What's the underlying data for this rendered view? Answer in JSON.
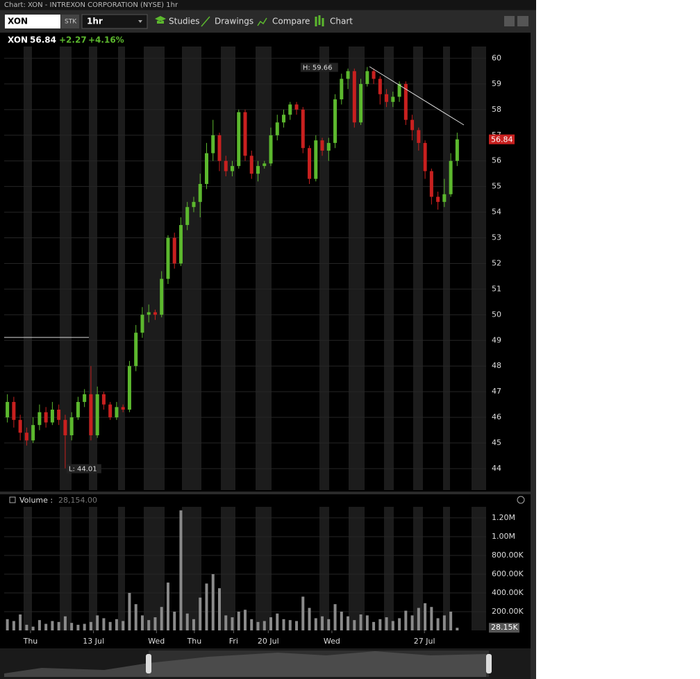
{
  "window": {
    "title": "Chart: XON - INTREXON CORPORATION (NYSE) 1hr"
  },
  "toolbar": {
    "symbol": "XON",
    "sec_type": "STK",
    "interval": "1hr",
    "studies": "Studies",
    "drawings": "Drawings",
    "compare": "Compare",
    "chart": "Chart"
  },
  "chart_data": [
    {
      "type": "candlestick",
      "symbol": "XON",
      "price": "56.84",
      "change": "+2.27",
      "change_pct": "+4.16%",
      "high_label": "H: 59.66",
      "low_label": "L: 44.01",
      "last_label": "56.84",
      "up_color": "#5cb82e",
      "down_color": "#c8201f",
      "candles": [
        [
          46.0,
          46.9,
          45.8,
          46.6
        ],
        [
          46.6,
          46.8,
          45.6,
          45.9
        ],
        [
          45.9,
          46.1,
          45.1,
          45.4
        ],
        [
          45.4,
          45.6,
          44.9,
          45.1
        ],
        [
          45.1,
          46.0,
          45.0,
          45.7
        ],
        [
          45.7,
          46.5,
          45.5,
          46.2
        ],
        [
          46.2,
          46.4,
          45.6,
          45.8
        ],
        [
          45.8,
          46.6,
          45.7,
          46.3
        ],
        [
          46.3,
          46.5,
          45.7,
          45.9
        ],
        [
          45.9,
          46.1,
          44.01,
          45.3
        ],
        [
          45.3,
          46.2,
          45.1,
          46.0
        ],
        [
          46.0,
          46.8,
          45.9,
          46.6
        ],
        [
          46.6,
          47.1,
          46.4,
          46.9
        ],
        [
          46.9,
          48.0,
          45.1,
          45.3
        ],
        [
          45.3,
          47.2,
          45.2,
          46.9
        ],
        [
          46.9,
          47.0,
          46.3,
          46.5
        ],
        [
          46.5,
          46.6,
          45.9,
          46.0
        ],
        [
          46.0,
          46.6,
          45.9,
          46.4
        ],
        [
          46.4,
          46.5,
          46.2,
          46.3
        ],
        [
          46.3,
          48.2,
          46.2,
          48.0
        ],
        [
          48.0,
          49.6,
          47.8,
          49.3
        ],
        [
          49.3,
          50.3,
          49.1,
          50.0
        ],
        [
          50.0,
          50.4,
          49.7,
          50.1
        ],
        [
          50.1,
          50.2,
          49.8,
          50.0
        ],
        [
          50.0,
          51.7,
          49.9,
          51.4
        ],
        [
          51.4,
          53.1,
          51.2,
          53.0
        ],
        [
          53.0,
          53.2,
          51.8,
          52.0
        ],
        [
          52.0,
          53.8,
          51.9,
          53.5
        ],
        [
          53.5,
          54.4,
          53.3,
          54.2
        ],
        [
          54.2,
          54.6,
          54.0,
          54.4
        ],
        [
          54.4,
          55.5,
          53.8,
          55.1
        ],
        [
          55.1,
          56.7,
          54.9,
          56.3
        ],
        [
          56.3,
          57.6,
          56.0,
          57.0
        ],
        [
          57.0,
          57.1,
          55.6,
          56.0
        ],
        [
          56.0,
          56.2,
          55.4,
          55.6
        ],
        [
          55.6,
          56.0,
          55.4,
          55.8
        ],
        [
          55.8,
          58.0,
          55.7,
          57.9
        ],
        [
          57.9,
          58.0,
          56.0,
          56.2
        ],
        [
          56.2,
          56.4,
          55.3,
          55.5
        ],
        [
          55.5,
          56.0,
          55.2,
          55.8
        ],
        [
          55.8,
          56.0,
          55.7,
          55.9
        ],
        [
          55.9,
          57.3,
          55.8,
          57.0
        ],
        [
          57.0,
          57.8,
          56.8,
          57.5
        ],
        [
          57.5,
          58.0,
          57.3,
          57.8
        ],
        [
          57.8,
          58.3,
          57.6,
          58.2
        ],
        [
          58.2,
          58.3,
          57.8,
          58.0
        ],
        [
          58.0,
          58.1,
          56.3,
          56.5
        ],
        [
          56.5,
          56.6,
          55.1,
          55.3
        ],
        [
          55.3,
          57.0,
          55.2,
          56.8
        ],
        [
          56.8,
          56.9,
          56.2,
          56.4
        ],
        [
          56.4,
          56.9,
          56.0,
          56.7
        ],
        [
          56.7,
          58.6,
          56.5,
          58.4
        ],
        [
          58.4,
          59.4,
          58.2,
          59.2
        ],
        [
          59.2,
          59.6,
          58.8,
          59.5
        ],
        [
          59.5,
          59.6,
          57.3,
          57.5
        ],
        [
          57.5,
          59.2,
          57.4,
          59.0
        ],
        [
          59.0,
          59.66,
          58.9,
          59.5
        ],
        [
          59.5,
          59.6,
          59.0,
          59.2
        ],
        [
          59.2,
          59.3,
          58.2,
          58.6
        ],
        [
          58.6,
          58.8,
          58.1,
          58.3
        ],
        [
          58.3,
          58.7,
          58.1,
          58.5
        ],
        [
          58.5,
          59.1,
          58.3,
          59.0
        ],
        [
          59.0,
          59.1,
          57.4,
          57.6
        ],
        [
          57.6,
          57.8,
          56.8,
          57.2
        ],
        [
          57.2,
          57.3,
          56.4,
          56.7
        ],
        [
          56.7,
          56.8,
          55.3,
          55.6
        ],
        [
          55.6,
          55.7,
          54.3,
          54.6
        ],
        [
          54.6,
          54.8,
          54.1,
          54.4
        ],
        [
          54.4,
          55.3,
          54.2,
          54.7
        ],
        [
          54.7,
          56.3,
          54.6,
          56.0
        ],
        [
          56.0,
          57.1,
          55.8,
          56.84
        ]
      ],
      "xlim": [
        -0.5,
        74.5
      ],
      "ylim": [
        43.16,
        60.46
      ],
      "yticks": [
        44,
        45,
        46,
        47,
        48,
        49,
        50,
        51,
        52,
        53,
        54,
        55,
        56,
        57,
        58,
        59,
        60
      ],
      "grid": true
    },
    {
      "type": "bar",
      "title": "Volume :",
      "last_value_label": "28,154.00",
      "last_label": "28.15K",
      "color": "#8a8a8a",
      "values": [
        120000,
        100000,
        170000,
        60000,
        40000,
        110000,
        70000,
        100000,
        90000,
        150000,
        80000,
        60000,
        70000,
        90000,
        160000,
        130000,
        90000,
        120000,
        100000,
        400000,
        280000,
        160000,
        110000,
        140000,
        250000,
        510000,
        200000,
        1280000,
        180000,
        120000,
        350000,
        500000,
        600000,
        450000,
        160000,
        140000,
        200000,
        220000,
        120000,
        90000,
        100000,
        140000,
        180000,
        120000,
        110000,
        100000,
        360000,
        240000,
        130000,
        150000,
        120000,
        280000,
        200000,
        150000,
        110000,
        170000,
        160000,
        90000,
        120000,
        140000,
        100000,
        130000,
        210000,
        160000,
        240000,
        290000,
        250000,
        130000,
        160000,
        200000,
        28154
      ],
      "xlim": [
        -0.5,
        74.5
      ],
      "xticks": [
        {
          "value": 3.6,
          "label": "Thu"
        },
        {
          "value": 13.4,
          "label": "13 Jul"
        },
        {
          "value": 23.2,
          "label": "Wed"
        },
        {
          "value": 29.1,
          "label": "Thu"
        },
        {
          "value": 35.2,
          "label": "Fri"
        },
        {
          "value": 40.6,
          "label": "20 Jul"
        },
        {
          "value": 50.5,
          "label": "Wed"
        },
        {
          "value": 64.9,
          "label": "27 Jul"
        }
      ],
      "ylim": [
        0,
        1318000
      ],
      "yticks": [
        {
          "value": 200000,
          "label": "200.00K"
        },
        {
          "value": 400000,
          "label": "400.00K"
        },
        {
          "value": 600000,
          "label": "600.00K"
        },
        {
          "value": 800000,
          "label": "800.00K"
        },
        {
          "value": 1000000,
          "label": "1.00M"
        },
        {
          "value": 1200000,
          "label": "1.20M"
        }
      ],
      "grid": true
    }
  ]
}
